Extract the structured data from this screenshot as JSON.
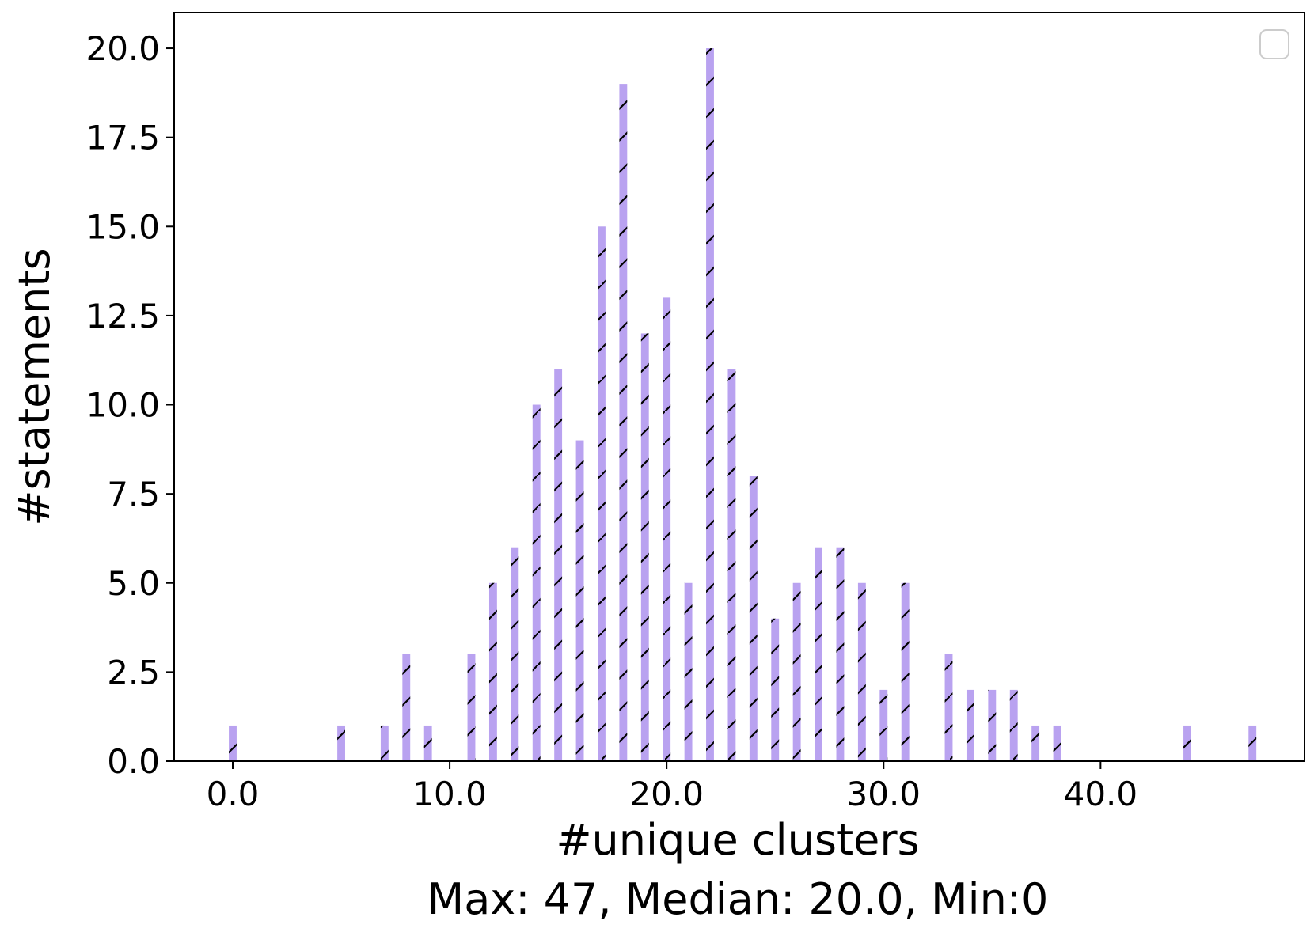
{
  "chart_data": {
    "type": "bar",
    "xlabel": "#unique clusters",
    "ylabel": "#statements",
    "subtitle": "Max: 47, Median: 20.0, Min:0",
    "xlim": [
      -2.7,
      49.4
    ],
    "ylim": [
      0,
      21
    ],
    "x_ticks": [
      0,
      10,
      20,
      30,
      40
    ],
    "x_tick_labels": [
      "0.0",
      "10.0",
      "20.0",
      "30.0",
      "40.0"
    ],
    "y_ticks": [
      0,
      2.5,
      5,
      7.5,
      10,
      12.5,
      15,
      17.5,
      20
    ],
    "y_tick_labels": [
      "0.0",
      "2.5",
      "5.0",
      "7.5",
      "10.0",
      "12.5",
      "15.0",
      "17.5",
      "20.0"
    ],
    "grid": false,
    "legend": "top-right (empty)",
    "bar_color": "#b9a2f0",
    "hatch": "/",
    "hatch_color": "#000000",
    "x": [
      0,
      5,
      7,
      8,
      9,
      11,
      12,
      13,
      14,
      15,
      16,
      17,
      18,
      19,
      20,
      21,
      22,
      23,
      24,
      25,
      26,
      27,
      28,
      29,
      30,
      31,
      33,
      34,
      35,
      36,
      37,
      38,
      44,
      47
    ],
    "values": [
      1,
      1,
      1,
      3,
      1,
      3,
      5,
      6,
      10,
      11,
      9,
      15,
      19,
      12,
      13,
      5,
      20,
      11,
      8,
      4,
      5,
      6,
      6,
      5,
      2,
      5,
      3,
      2,
      2,
      2,
      1,
      1,
      1,
      1
    ]
  }
}
